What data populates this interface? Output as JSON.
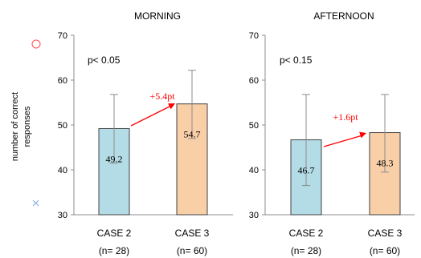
{
  "chart_data": {
    "type": "bar",
    "ylabel": "number of correct responses",
    "ylim": [
      30,
      70
    ],
    "yticks": [
      30,
      40,
      50,
      60,
      70
    ],
    "grid": false,
    "legend": "none",
    "panels": [
      {
        "title": "MORNING",
        "pvalue_text": "p< 0.05",
        "diff_text": "+5.4pt",
        "categories": [
          {
            "line1": "CASE 2",
            "line2": "(n= 28)"
          },
          {
            "line1": "CASE 3",
            "line2": "(n= 60)"
          }
        ],
        "values": [
          49.2,
          54.7
        ],
        "value_labels": [
          "49.2",
          "54.7"
        ],
        "error_low": [
          41.5,
          47.0
        ],
        "error_high": [
          56.8,
          62.2
        ],
        "colors": [
          "#b4dce6",
          "#f9cfa8"
        ]
      },
      {
        "title": "AFTERNOON",
        "pvalue_text": "p< 0.15",
        "diff_text": "+1.6pt",
        "categories": [
          {
            "line1": "CASE 2",
            "line2": "(n= 28)"
          },
          {
            "line1": "CASE 3",
            "line2": "(n= 60)"
          }
        ],
        "values": [
          46.7,
          48.3
        ],
        "value_labels": [
          "46.7",
          "48.3"
        ],
        "error_low": [
          36.5,
          39.5
        ],
        "error_high": [
          56.8,
          56.8
        ],
        "colors": [
          "#b4dce6",
          "#f9cfa8"
        ]
      }
    ],
    "colors": {
      "axis": "#8c8c8c",
      "bar_edge": "#404040",
      "error_bar": "#8c8c8c",
      "arrow": "#ff0000",
      "diff_text": "#ff0000",
      "marker_circle": "#ff4d4d",
      "marker_cross": "#7fa7d9"
    }
  }
}
